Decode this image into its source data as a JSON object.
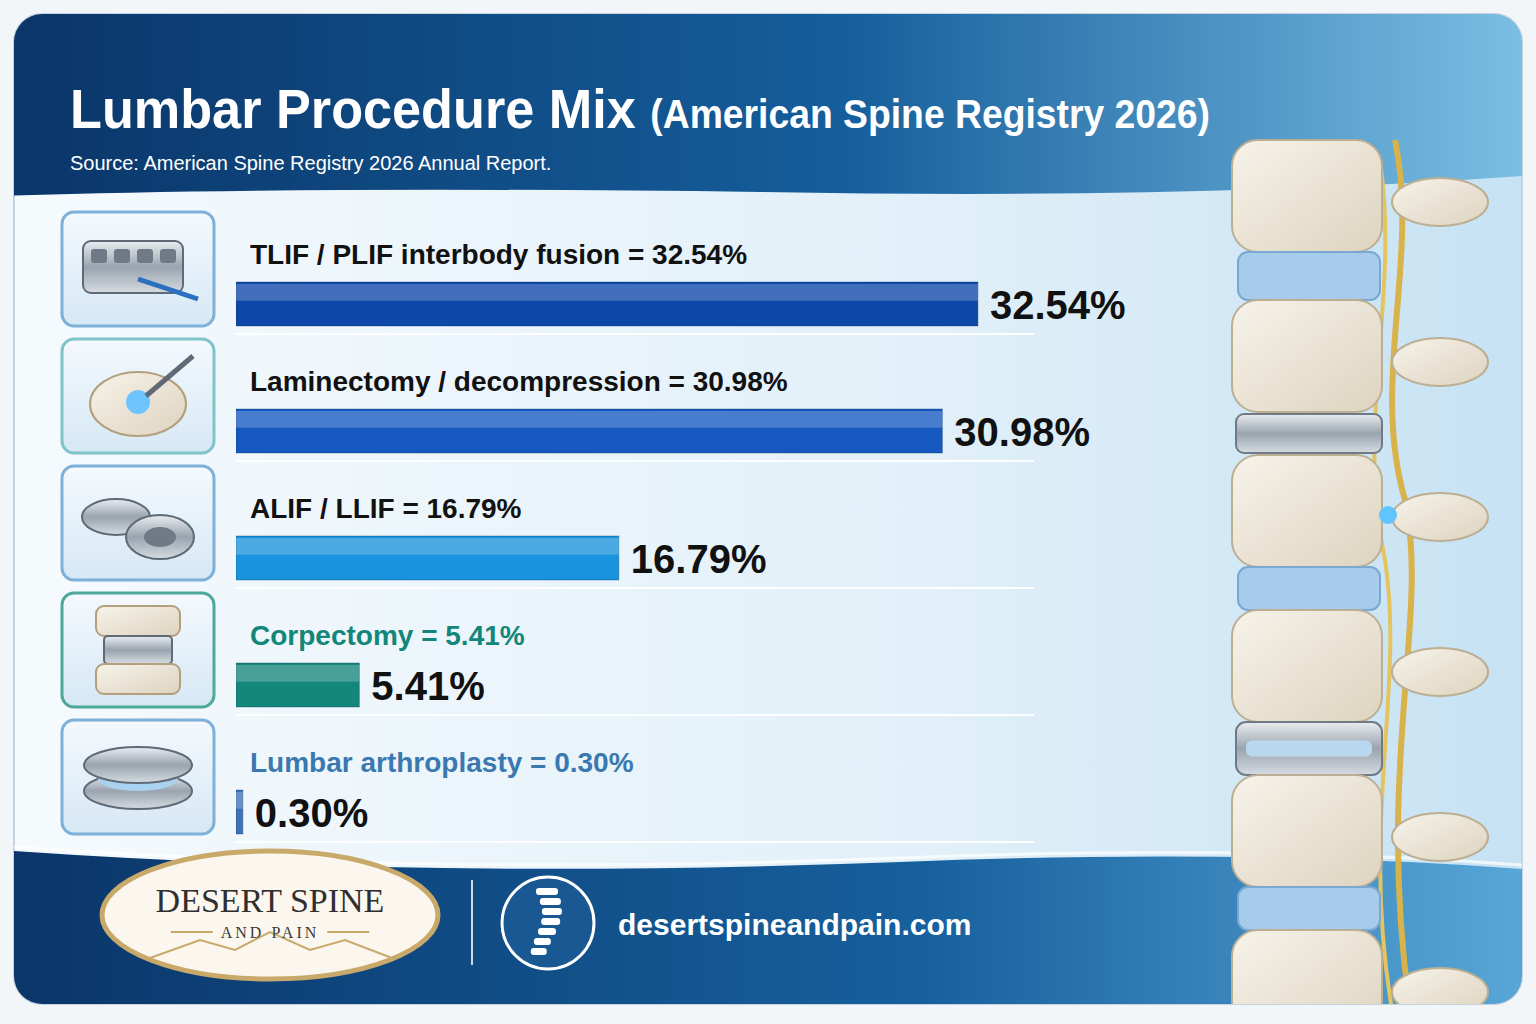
{
  "chart_data": {
    "type": "bar",
    "title": "Lumbar Procedure Mix (American Spine Registry 2026)",
    "subtitle": "Source: American Spine Registry 2026 Annual Report.",
    "categories": [
      "TLIF / PLIF interbody fusion = 32.54%",
      "Laminectomy / decompression = 30.98%",
      "ALIF / LLIF = 16.79%",
      "Corpectomy = 5.41%",
      "Lumbar arthroplasty = 0.30%"
    ],
    "values": [
      32.54,
      30.98,
      16.79,
      5.41,
      0.3
    ],
    "value_labels": [
      "32.54%",
      "30.98%",
      "16.79%",
      "5.41%",
      "0.30%"
    ],
    "colors": [
      "#0d47a8",
      "#1558c0",
      "#1993dd",
      "#14877d",
      "#3d72b8"
    ],
    "orientation": "horizontal",
    "data_labels": true,
    "tick_labels": false,
    "grid": false,
    "xlim": [
      0,
      35
    ]
  },
  "footer": {
    "logo_name": "DESERT SPINE",
    "logo_tagline": "AND PAIN",
    "website": "desertspineandpain.com"
  }
}
